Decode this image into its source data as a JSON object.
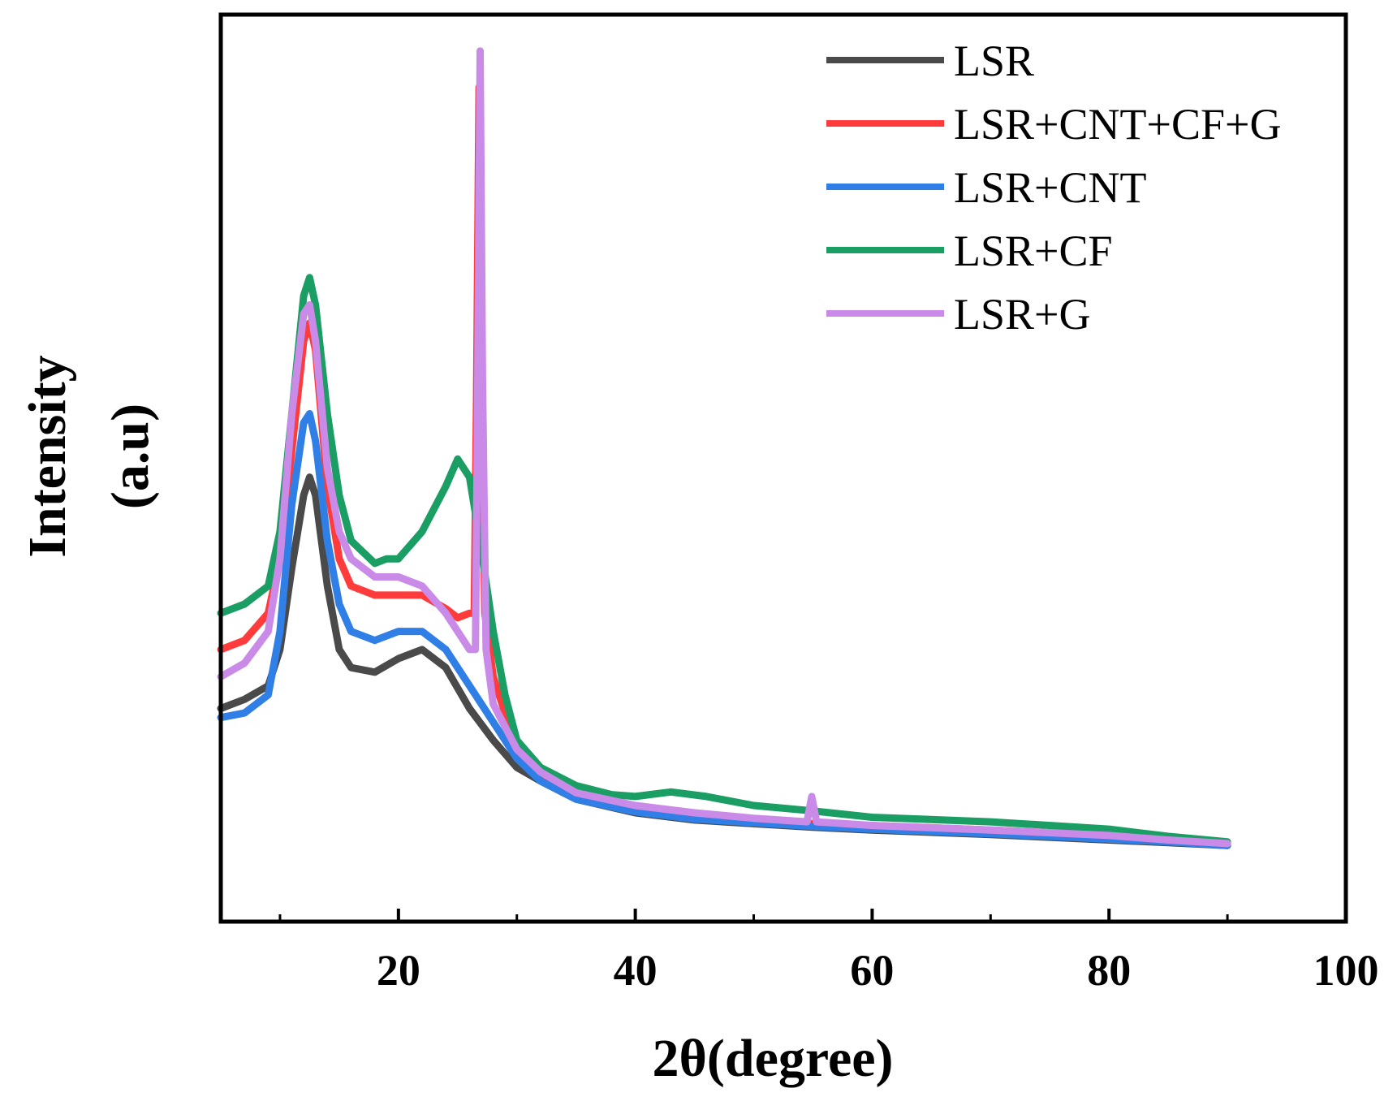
{
  "chart_data": {
    "type": "line",
    "title": "",
    "xlabel": "2θ(degree)",
    "ylabel_line1": "Intensity",
    "ylabel_line2": "(a.u)",
    "xlim": [
      5,
      100
    ],
    "ylim": [
      0,
      100
    ],
    "x_ticks": [
      20,
      40,
      60,
      80,
      100
    ],
    "x_minor_ticks": [
      10,
      30,
      50,
      70,
      90
    ],
    "y_tick_labels": false,
    "legend_position": "top-right",
    "series": [
      {
        "name": "LSR",
        "color": "#4a4a4a",
        "points": [
          [
            5,
            23.5
          ],
          [
            7,
            24.5
          ],
          [
            9,
            26
          ],
          [
            10,
            30
          ],
          [
            11,
            39
          ],
          [
            12,
            47
          ],
          [
            12.5,
            49
          ],
          [
            13,
            47
          ],
          [
            14,
            37
          ],
          [
            15,
            30
          ],
          [
            16,
            28
          ],
          [
            18,
            27.5
          ],
          [
            20,
            29
          ],
          [
            22,
            30
          ],
          [
            24,
            28
          ],
          [
            26,
            23.5
          ],
          [
            28,
            20
          ],
          [
            30,
            17
          ],
          [
            32,
            15.5
          ],
          [
            35,
            13.5
          ],
          [
            40,
            12
          ],
          [
            45,
            11.2
          ],
          [
            50,
            10.8
          ],
          [
            55,
            10.4
          ],
          [
            60,
            10.1
          ],
          [
            70,
            9.6
          ],
          [
            80,
            9
          ],
          [
            85,
            8.7
          ],
          [
            90,
            8.4
          ]
        ]
      },
      {
        "name": "LSR+CNT+CF+G",
        "color": "#ff3b3b",
        "points": [
          [
            5,
            30
          ],
          [
            7,
            31
          ],
          [
            9,
            34
          ],
          [
            10,
            40
          ],
          [
            11,
            52
          ],
          [
            12,
            64
          ],
          [
            12.5,
            66
          ],
          [
            13,
            63
          ],
          [
            14,
            48
          ],
          [
            15,
            40
          ],
          [
            16,
            37
          ],
          [
            18,
            36
          ],
          [
            20,
            36
          ],
          [
            22,
            36
          ],
          [
            24,
            34.5
          ],
          [
            25,
            33.5
          ],
          [
            26,
            34
          ],
          [
            26.4,
            34
          ],
          [
            26.6,
            58
          ],
          [
            26.8,
            92
          ],
          [
            27,
            58
          ],
          [
            27.3,
            34
          ],
          [
            28,
            27
          ],
          [
            30,
            19
          ],
          [
            32,
            16
          ],
          [
            35,
            14
          ],
          [
            40,
            12.6
          ],
          [
            45,
            11.8
          ],
          [
            50,
            11.2
          ],
          [
            55,
            10.8
          ],
          [
            60,
            10.6
          ],
          [
            70,
            10.1
          ],
          [
            80,
            9.5
          ],
          [
            85,
            9
          ],
          [
            90,
            8.6
          ]
        ]
      },
      {
        "name": "LSR+CNT",
        "color": "#2f7fe6",
        "points": [
          [
            5,
            22.5
          ],
          [
            7,
            23
          ],
          [
            9,
            25
          ],
          [
            10,
            32
          ],
          [
            11,
            46
          ],
          [
            12,
            55
          ],
          [
            12.5,
            56
          ],
          [
            13,
            53
          ],
          [
            14,
            42
          ],
          [
            15,
            35
          ],
          [
            16,
            32
          ],
          [
            18,
            31
          ],
          [
            20,
            32
          ],
          [
            22,
            32
          ],
          [
            24,
            30
          ],
          [
            26,
            26
          ],
          [
            28,
            22
          ],
          [
            30,
            18
          ],
          [
            32,
            15.5
          ],
          [
            35,
            13.5
          ],
          [
            40,
            12.1
          ],
          [
            45,
            11.3
          ],
          [
            50,
            10.9
          ],
          [
            55,
            10.5
          ],
          [
            60,
            10.2
          ],
          [
            70,
            9.7
          ],
          [
            80,
            9.1
          ],
          [
            85,
            8.8
          ],
          [
            90,
            8.4
          ]
        ]
      },
      {
        "name": "LSR+CF",
        "color": "#1a9e64",
        "points": [
          [
            5,
            34
          ],
          [
            7,
            35
          ],
          [
            9,
            37
          ],
          [
            10,
            43
          ],
          [
            11,
            56
          ],
          [
            12,
            69
          ],
          [
            12.5,
            71
          ],
          [
            13,
            68
          ],
          [
            14,
            56
          ],
          [
            15,
            47
          ],
          [
            16,
            42
          ],
          [
            18,
            39.5
          ],
          [
            19,
            40
          ],
          [
            20,
            40
          ],
          [
            22,
            43
          ],
          [
            24,
            48
          ],
          [
            25,
            51
          ],
          [
            26,
            49
          ],
          [
            27,
            41
          ],
          [
            28,
            32
          ],
          [
            29,
            25
          ],
          [
            30,
            20
          ],
          [
            32,
            17
          ],
          [
            35,
            15
          ],
          [
            38,
            14
          ],
          [
            40,
            13.8
          ],
          [
            43,
            14.3
          ],
          [
            46,
            13.8
          ],
          [
            50,
            12.8
          ],
          [
            55,
            12.2
          ],
          [
            60,
            11.5
          ],
          [
            70,
            11
          ],
          [
            80,
            10.2
          ],
          [
            85,
            9.4
          ],
          [
            90,
            8.8
          ]
        ]
      },
      {
        "name": "LSR+G",
        "color": "#c98ae8",
        "points": [
          [
            5,
            27
          ],
          [
            7,
            28.5
          ],
          [
            9,
            32
          ],
          [
            10,
            40
          ],
          [
            11,
            56
          ],
          [
            12,
            67
          ],
          [
            12.5,
            68
          ],
          [
            13,
            64
          ],
          [
            14,
            50
          ],
          [
            15,
            43
          ],
          [
            16,
            40
          ],
          [
            18,
            38
          ],
          [
            20,
            38
          ],
          [
            22,
            37
          ],
          [
            24,
            34
          ],
          [
            26,
            30
          ],
          [
            26.5,
            30
          ],
          [
            26.7,
            60
          ],
          [
            26.9,
            96
          ],
          [
            27.1,
            60
          ],
          [
            27.4,
            30
          ],
          [
            28,
            24
          ],
          [
            30,
            19
          ],
          [
            32,
            16.5
          ],
          [
            35,
            14.2
          ],
          [
            40,
            12.8
          ],
          [
            45,
            12
          ],
          [
            50,
            11.4
          ],
          [
            54.5,
            11
          ],
          [
            54.9,
            13.8
          ],
          [
            55.3,
            11
          ],
          [
            60,
            10.6
          ],
          [
            70,
            10.1
          ],
          [
            80,
            9.5
          ],
          [
            85,
            9
          ],
          [
            90,
            8.6
          ]
        ]
      }
    ]
  }
}
